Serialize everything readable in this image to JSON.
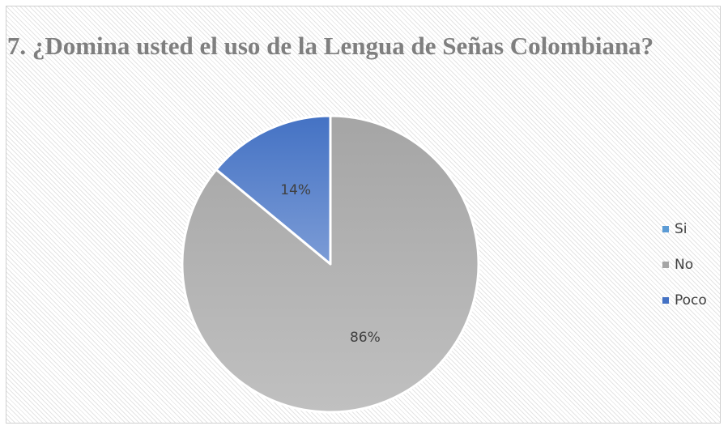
{
  "chart_data": {
    "type": "pie",
    "title": "7. ¿Domina usted el uso de la Lengua de Señas Colombiana?",
    "categories": [
      "Si",
      "No",
      "Poco"
    ],
    "values": [
      0,
      86,
      14
    ],
    "value_labels": [
      "",
      "86%",
      "14%"
    ],
    "colors": [
      "#5b9bd5",
      "#a5a5a5",
      "#4472c4"
    ],
    "start_angle_deg": 0,
    "direction": "clockwise",
    "legend_position": "right"
  }
}
